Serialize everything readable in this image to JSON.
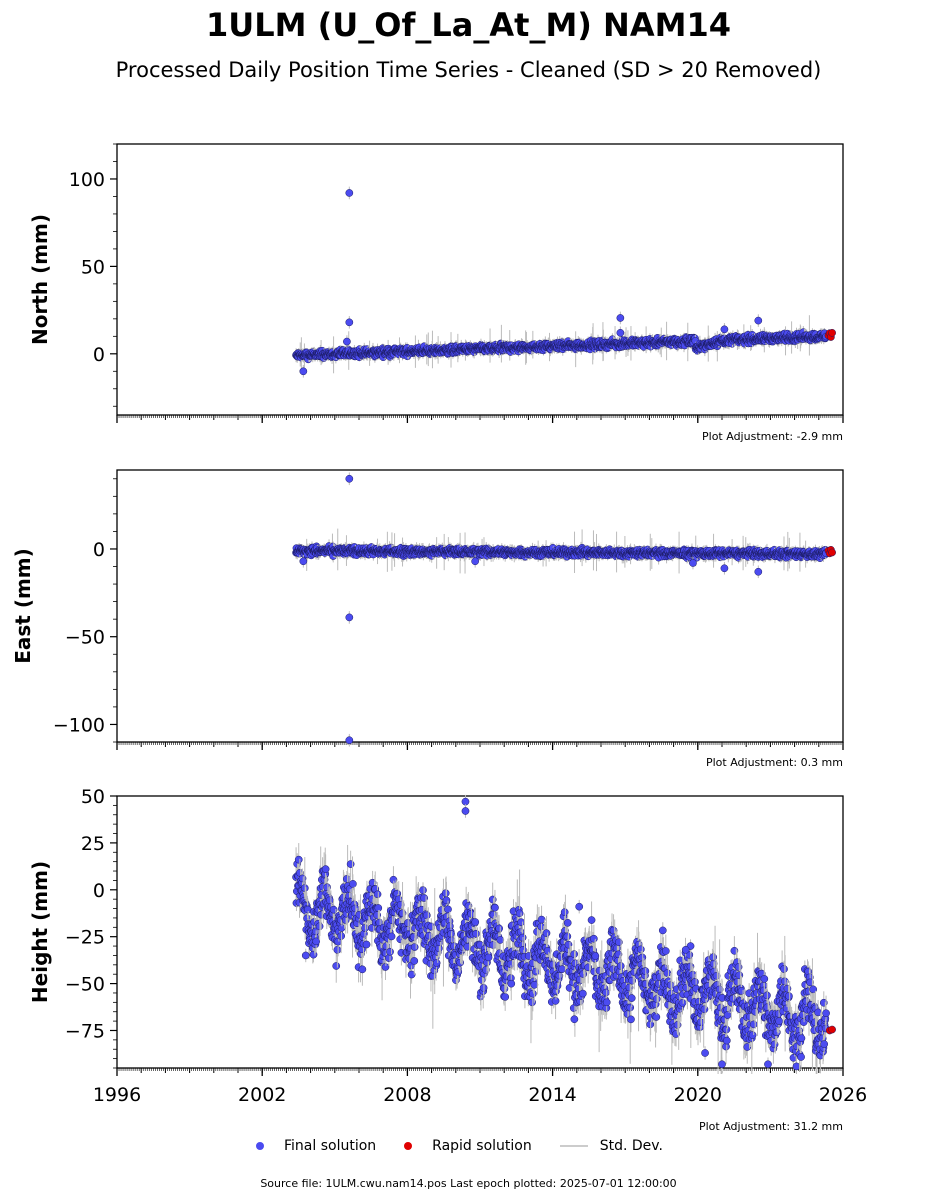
{
  "figure": {
    "title": "1ULM (U_Of_La_At_M) NAM14",
    "subtitle": "Processed Daily Position Time Series - Cleaned (SD > 20 Removed)",
    "footer": "Source file: 1ULM.cwu.nam14.pos  Last epoch plotted: 2025-07-01 12:00:00"
  },
  "legend": {
    "final": "Final solution",
    "rapid": "Rapid solution",
    "std": "Std. Dev."
  },
  "colors": {
    "final": "#4b4bf0",
    "final_edge": "#1a1a60",
    "rapid": "#e00000",
    "std": "#bbbbbb"
  },
  "chart_data": [
    {
      "type": "scatter",
      "ylabel": "North (mm)",
      "adjustment": "Plot Adjustment: -2.9 mm",
      "xlim": [
        1996,
        2026
      ],
      "ylim": [
        -35,
        120
      ],
      "yticks": [
        0,
        50,
        100
      ],
      "trend": {
        "start": [
          2003.4,
          -1.0
        ],
        "end": [
          2025.3,
          10.0
        ],
        "amplitude": 1.5,
        "jump": {
          "at": 2019.9,
          "delta": -4
        }
      },
      "outliers": [
        [
          2003.7,
          -10
        ],
        [
          2005.6,
          92
        ],
        [
          2005.6,
          18
        ],
        [
          2005.5,
          7
        ],
        [
          2016.8,
          20.5
        ],
        [
          2016.8,
          12
        ],
        [
          2021.1,
          14
        ],
        [
          2022.5,
          19
        ]
      ],
      "rapid": [
        [
          2025.4,
          10.5
        ],
        [
          2025.45,
          11.8
        ],
        [
          2025.5,
          9.6
        ],
        [
          2025.55,
          12.0
        ]
      ],
      "series": [
        {
          "name": "Final solution"
        },
        {
          "name": "Rapid solution"
        }
      ]
    },
    {
      "type": "scatter",
      "ylabel": "East (mm)",
      "adjustment": "Plot Adjustment: 0.3 mm",
      "xlim": [
        1996,
        2026
      ],
      "ylim": [
        -110,
        45
      ],
      "yticks": [
        -100,
        -50,
        0
      ],
      "trend": {
        "start": [
          2003.4,
          -1.0
        ],
        "end": [
          2025.3,
          -3.0
        ],
        "amplitude": 1.5
      },
      "outliers": [
        [
          2005.6,
          40
        ],
        [
          2005.6,
          -39
        ],
        [
          2005.6,
          -109
        ],
        [
          2003.7,
          -7
        ],
        [
          2019.8,
          -8
        ],
        [
          2021.1,
          -11
        ],
        [
          2022.5,
          -13
        ],
        [
          2010.8,
          -7
        ]
      ],
      "rapid": [
        [
          2025.4,
          -1.0
        ],
        [
          2025.45,
          -2.5
        ],
        [
          2025.5,
          -0.5
        ],
        [
          2025.55,
          -2.0
        ]
      ],
      "series": [
        {
          "name": "Final solution"
        },
        {
          "name": "Rapid solution"
        }
      ]
    },
    {
      "type": "scatter",
      "ylabel": "Height (mm)",
      "adjustment": "Plot Adjustment: 31.2 mm",
      "xlim": [
        1996,
        2026
      ],
      "ylim": [
        -95,
        50
      ],
      "yticks": [
        -75,
        -50,
        -25,
        0,
        25,
        50
      ],
      "xticks": [
        1996,
        2002,
        2008,
        2014,
        2020,
        2026
      ],
      "trend": {
        "start": [
          2003.4,
          -8.0
        ],
        "end": [
          2025.3,
          -70.0
        ],
        "amplitude": 10
      },
      "outliers": [
        [
          2010.4,
          47
        ],
        [
          2010.4,
          42
        ],
        [
          2003.8,
          -35
        ],
        [
          2015.1,
          -9
        ],
        [
          2019.7,
          -30
        ],
        [
          2019.5,
          -32
        ],
        [
          2014.9,
          -69
        ],
        [
          2020.3,
          -87
        ],
        [
          2021.0,
          -93
        ],
        [
          2022.9,
          -93
        ]
      ],
      "rapid": [
        [
          2025.45,
          -75
        ],
        [
          2025.55,
          -74.5
        ]
      ],
      "series": [
        {
          "name": "Final solution"
        },
        {
          "name": "Rapid solution"
        }
      ]
    }
  ]
}
